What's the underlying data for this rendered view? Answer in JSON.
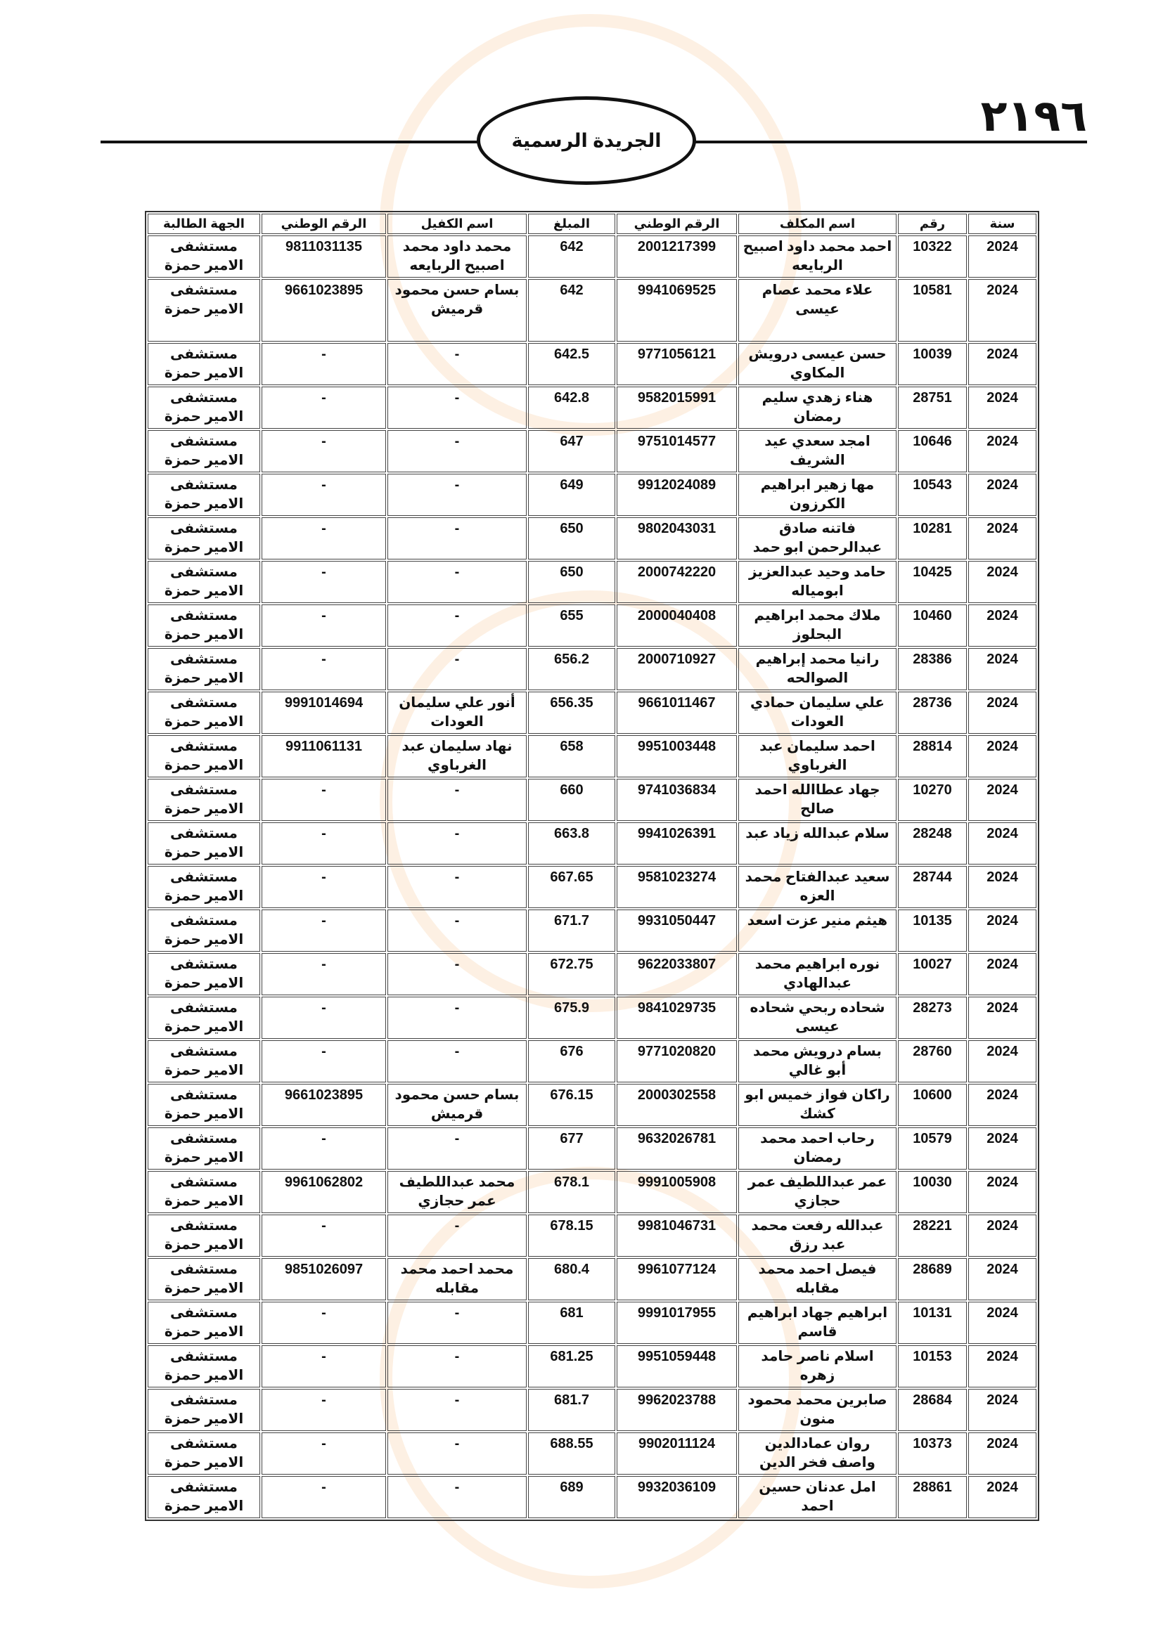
{
  "header": {
    "page_number": "٢١٩٦",
    "title": "الجريدة الرسمية"
  },
  "table": {
    "columns": [
      "سنة",
      "رقم",
      "اسم المكلف",
      "الرقم الوطني",
      "المبلغ",
      "اسم الكفيل",
      "الرقم الوطني",
      "الجهة الطالبة"
    ],
    "rows": [
      [
        "2024",
        "10322",
        "احمد محمد داود اصبيح الربايعه",
        "2001217399",
        "642",
        "محمد داود محمد اصبيح الربايعه",
        "9811031135",
        "مستشفى الامير حمزة"
      ],
      [
        "2024",
        "10581",
        "علاء محمد عصام عيسى",
        "9941069525",
        "642",
        "بسام حسن محمود قرميش",
        "9661023895",
        "مستشفى الامير حمزة"
      ],
      [
        "2024",
        "10039",
        "حسن عيسى درويش المكاوي",
        "9771056121",
        "642.5",
        "-",
        "-",
        "مستشفى الامير حمزة"
      ],
      [
        "2024",
        "28751",
        "هناء زهدي سليم رمضان",
        "9582015991",
        "642.8",
        "-",
        "-",
        "مستشفى الامير حمزة"
      ],
      [
        "2024",
        "10646",
        "امجد سعدي عيد الشريف",
        "9751014577",
        "647",
        "-",
        "-",
        "مستشفى الامير حمزة"
      ],
      [
        "2024",
        "10543",
        "مها زهير ابراهيم الكرزون",
        "9912024089",
        "649",
        "-",
        "-",
        "مستشفى الامير حمزة"
      ],
      [
        "2024",
        "10281",
        "فاتنه صادق عبدالرحمن ابو حمد",
        "9802043031",
        "650",
        "-",
        "-",
        "مستشفى الامير حمزة"
      ],
      [
        "2024",
        "10425",
        "حامد وحيد عبدالعزيز ابومياله",
        "2000742220",
        "650",
        "-",
        "-",
        "مستشفى الامير حمزة"
      ],
      [
        "2024",
        "10460",
        "ملاك محمد ابراهيم البحلوز",
        "2000040408",
        "655",
        "-",
        "-",
        "مستشفى الامير حمزة"
      ],
      [
        "2024",
        "28386",
        "رانيا محمد إبراهيم الصوالحه",
        "2000710927",
        "656.2",
        "-",
        "-",
        "مستشفى الامير حمزة"
      ],
      [
        "2024",
        "28736",
        "علي سليمان حمادي العودات",
        "9661011467",
        "656.35",
        "أنور علي سليمان العودات",
        "9991014694",
        "مستشفى الامير حمزة"
      ],
      [
        "2024",
        "28814",
        "احمد سليمان عبد الغرباوي",
        "9951003448",
        "658",
        "نهاد سليمان عبد الغرباوي",
        "9911061131",
        "مستشفى الامير حمزة"
      ],
      [
        "2024",
        "10270",
        "جهاد عطاالله احمد صالح",
        "9741036834",
        "660",
        "-",
        "-",
        "مستشفى الامير حمزة"
      ],
      [
        "2024",
        "28248",
        "سلام  عبدالله زياد عبد",
        "9941026391",
        "663.8",
        "-",
        "-",
        "مستشفى الامير حمزة"
      ],
      [
        "2024",
        "28744",
        "سعيد عبدالفتاح محمد العزه",
        "9581023274",
        "667.65",
        "-",
        "-",
        "مستشفى الامير حمزة"
      ],
      [
        "2024",
        "10135",
        "هيثم منير عزت اسعد",
        "9931050447",
        "671.7",
        "-",
        "-",
        "مستشفى الامير حمزة"
      ],
      [
        "2024",
        "10027",
        "نوره ابراهيم محمد عبدالهادي",
        "9622033807",
        "672.75",
        "-",
        "-",
        "مستشفى الامير حمزة"
      ],
      [
        "2024",
        "28273",
        "شحاده ربحي شحاده عيسى",
        "9841029735",
        "675.9",
        "-",
        "-",
        "مستشفى الامير حمزة"
      ],
      [
        "2024",
        "28760",
        "بسام درويش محمد أبو غالي",
        "9771020820",
        "676",
        "-",
        "-",
        "مستشفى الامير حمزة"
      ],
      [
        "2024",
        "10600",
        "راكان فواز خميس ابو كشك",
        "2000302558",
        "676.15",
        "بسام حسن محمود قرميش",
        "9661023895",
        "مستشفى الامير حمزة"
      ],
      [
        "2024",
        "10579",
        "رحاب احمد محمد رمضان",
        "9632026781",
        "677",
        "-",
        "-",
        "مستشفى الامير حمزة"
      ],
      [
        "2024",
        "10030",
        "عمر عبداللطيف عمر حجازي",
        "9991005908",
        "678.1",
        "محمد عبداللطيف عمر حجازي",
        "9961062802",
        "مستشفى الامير حمزة"
      ],
      [
        "2024",
        "28221",
        "عبدالله رفعت محمد عبد رزق",
        "9981046731",
        "678.15",
        "-",
        "-",
        "مستشفى الامير حمزة"
      ],
      [
        "2024",
        "28689",
        "فيصل احمد محمد مقابله",
        "9961077124",
        "680.4",
        "محمد احمد محمد مقابله",
        "9851026097",
        "مستشفى الامير حمزة"
      ],
      [
        "2024",
        "10131",
        "ابراهيم جهاد ابراهيم قاسم",
        "9991017955",
        "681",
        "-",
        "-",
        "مستشفى الامير حمزة"
      ],
      [
        "2024",
        "10153",
        "اسلام ناصر حامد زهره",
        "9951059448",
        "681.25",
        "-",
        "-",
        "مستشفى الامير حمزة"
      ],
      [
        "2024",
        "28684",
        "صابرين محمد محمود منون",
        "9962023788",
        "681.7",
        "-",
        "-",
        "مستشفى الامير حمزة"
      ],
      [
        "2024",
        "10373",
        "روان عمادالدين واصف فخر الدين",
        "9902011124",
        "688.55",
        "-",
        "-",
        "مستشفى الامير حمزة"
      ],
      [
        "2024",
        "28861",
        "امل عدنان حسين احمد",
        "9932036109",
        "689",
        "-",
        "-",
        "مستشفى الامير حمزة"
      ]
    ]
  }
}
